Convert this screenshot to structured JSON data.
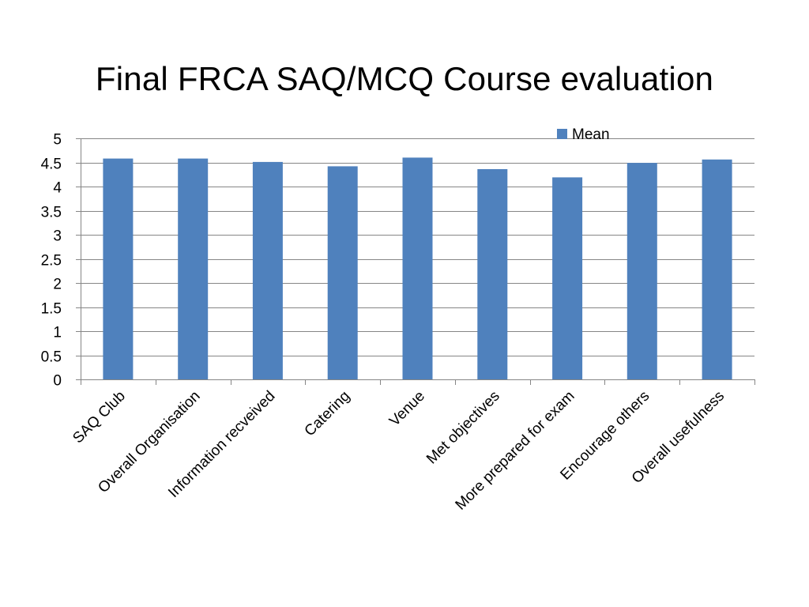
{
  "slide": {
    "title": "Final FRCA SAQ/MCQ Course evaluation"
  },
  "chart_data": {
    "type": "bar",
    "title": "",
    "xlabel": "",
    "ylabel": "",
    "categories": [
      "SAQ Club",
      "Overall Organisation",
      "Information recveived",
      "Catering",
      "Venue",
      "Met objectives",
      "More prepared for exam",
      "Encourage others",
      "Overall usefulness"
    ],
    "series": [
      {
        "name": "Mean",
        "values": [
          4.58,
          4.58,
          4.51,
          4.42,
          4.6,
          4.36,
          4.19,
          4.49,
          4.56
        ],
        "color": "#4f81bd"
      }
    ],
    "ylim": [
      0,
      5
    ],
    "yticks": [
      "0",
      "0.5",
      "1",
      "1.5",
      "2",
      "2.5",
      "3",
      "3.5",
      "4",
      "4.5",
      "5"
    ],
    "grid": true,
    "legend_position": "top-right",
    "gridline_color": "#868686"
  }
}
